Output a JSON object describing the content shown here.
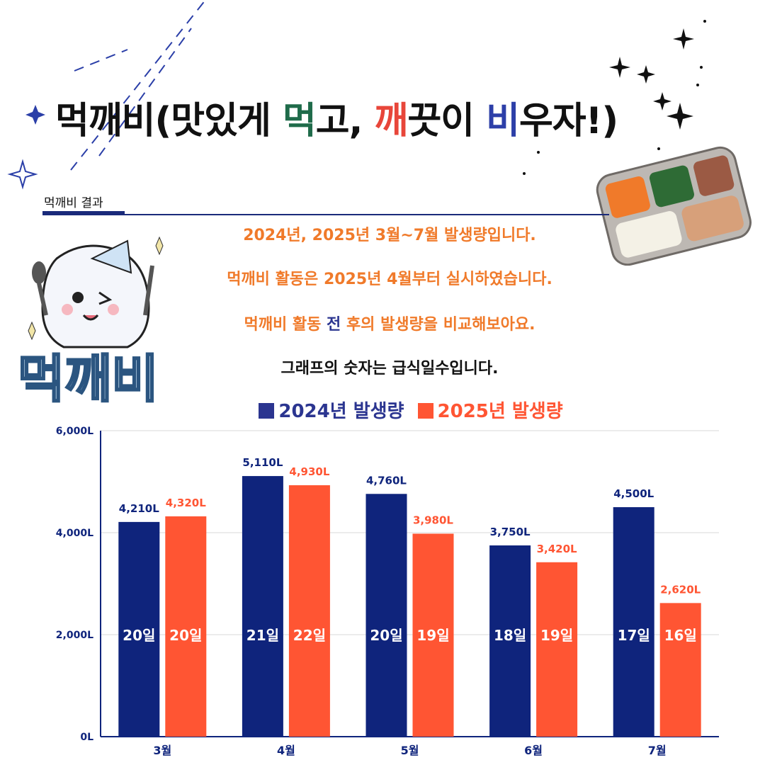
{
  "title": {
    "prefix": "먹깨비(맛있게 ",
    "meok": "먹",
    "go": "고, ",
    "kkae": "깨",
    "kkeut": "끗이 ",
    "bi": "비",
    "suffix": "우자!)"
  },
  "section": {
    "label": "먹깨비 결과"
  },
  "info": {
    "line1": "2024년, 2025년 3월~7월 발생량입니다.",
    "line2": "먹깨비 활동은 2025년 4월부터 실시하였습니다.",
    "line3_a": "먹깨비 활동 ",
    "line3_b": "전",
    "line3_c": " 후의 발생량을 비교해보아요.",
    "line4": "그래프의 숫자는 급식일수입니다."
  },
  "legend": {
    "s1": "2024년 발생량",
    "s2": "2025년 발생량"
  },
  "colors": {
    "s1": "#0f247c",
    "s2": "#ff5533",
    "grid": "#d9d9d9",
    "axis": "#0f247c"
  },
  "chart_data": {
    "type": "bar",
    "categories": [
      "3월",
      "4월",
      "5월",
      "6월",
      "7월"
    ],
    "series": [
      {
        "name": "2024년 발생량",
        "values": [
          4210,
          5110,
          4760,
          3750,
          4500
        ],
        "labels": [
          "4,210L",
          "5,110L",
          "4,760L",
          "3,750L",
          "4,500L"
        ],
        "days": [
          "20일",
          "21일",
          "20일",
          "18일",
          "17일"
        ]
      },
      {
        "name": "2025년 발생량",
        "values": [
          4320,
          4930,
          3980,
          3420,
          2620
        ],
        "labels": [
          "4,320L",
          "4,930L",
          "3,980L",
          "3,420L",
          "2,620L"
        ],
        "days": [
          "20일",
          "22일",
          "19일",
          "19일",
          "16일"
        ]
      }
    ],
    "yticks": [
      0,
      2000,
      4000,
      6000
    ],
    "ytick_labels": [
      "0L",
      "2,000L",
      "4,000L",
      "6,000L"
    ],
    "ylim": [
      0,
      6000
    ],
    "grid": true,
    "legend": "top-center"
  }
}
